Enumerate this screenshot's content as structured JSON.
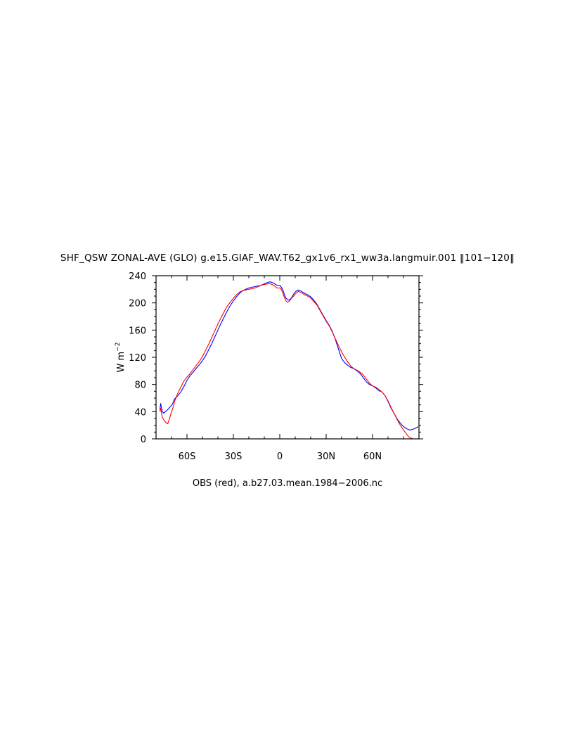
{
  "chart_data": {
    "type": "line",
    "title": "SHF_QSW ZONAL-AVE (GLO) g.e15.GIAF_WAV.T62_gx1v6_rx1_ww3a.langmuir.001 ‖101−120‖",
    "caption": "OBS (red), a.b27.03.mean.1984−2006.nc",
    "xlabel": "",
    "ylabel": "W m",
    "ylabel_superscript": "−2",
    "xlim": [
      -80,
      90
    ],
    "ylim": [
      0,
      240
    ],
    "x_ticks": [
      -60,
      -30,
      0,
      30,
      60
    ],
    "x_tick_labels": [
      "60S",
      "30S",
      "0",
      "30N",
      "60N"
    ],
    "y_ticks": [
      0,
      40,
      80,
      120,
      160,
      200,
      240
    ],
    "y_tick_labels": [
      "0",
      "40",
      "80",
      "120",
      "160",
      "200",
      "240"
    ],
    "grid": false,
    "series": [
      {
        "color": "#0000ff",
        "x": [
          -77.5,
          -77,
          -76.5,
          -76,
          -75,
          -74,
          -73,
          -72,
          -71,
          -70,
          -69,
          -68,
          -66,
          -64,
          -62,
          -60,
          -58,
          -56,
          -54,
          -52,
          -50,
          -48,
          -46,
          -44,
          -42,
          -40,
          -38,
          -36,
          -34,
          -32,
          -30,
          -28,
          -26,
          -24,
          -22,
          -20,
          -18,
          -16,
          -14,
          -12,
          -10,
          -8,
          -6,
          -4,
          -2,
          0,
          1,
          2,
          3,
          4,
          5,
          6,
          7,
          8,
          9,
          10,
          11,
          12,
          13,
          14,
          16,
          18,
          20,
          22,
          24,
          26,
          28,
          30,
          32,
          34,
          36,
          38,
          39,
          40,
          41,
          42,
          43,
          44,
          46,
          48,
          50,
          52,
          54,
          56,
          58,
          60,
          62,
          64,
          66,
          68,
          70,
          72,
          74,
          76,
          78,
          80,
          82,
          84,
          86,
          88,
          89.5
        ],
        "y": [
          43,
          52,
          46,
          40,
          38,
          40,
          42,
          44,
          47,
          49,
          53,
          59,
          63,
          69,
          77,
          86,
          93,
          98,
          104,
          109,
          115,
          122,
          131,
          140,
          150,
          160,
          170,
          179,
          188,
          196,
          203,
          209,
          214,
          218,
          220,
          222,
          223,
          224,
          225,
          226,
          228,
          230,
          231,
          229,
          226,
          226,
          223,
          219,
          212,
          207,
          205,
          204,
          206,
          209,
          213,
          216,
          218,
          219,
          218,
          217,
          214,
          212,
          209,
          204,
          198,
          190,
          182,
          174,
          167,
          158,
          146,
          132,
          125,
          118,
          115,
          112,
          110,
          108,
          105,
          103,
          100,
          96,
          90,
          84,
          80,
          78,
          75,
          71,
          69,
          64,
          55,
          45,
          37,
          29,
          23,
          18,
          15,
          13,
          14,
          16,
          18
        ]
      },
      {
        "color": "#ff0000",
        "x": [
          -77.5,
          -77,
          -76.5,
          -76,
          -75,
          -74,
          -73,
          -72.5,
          -72,
          -71,
          -70,
          -69,
          -68,
          -66,
          -64,
          -62,
          -60,
          -58,
          -56,
          -54,
          -52,
          -50,
          -48,
          -46,
          -44,
          -42,
          -40,
          -38,
          -36,
          -34,
          -32,
          -30,
          -28,
          -26,
          -24,
          -22,
          -20,
          -18,
          -16,
          -14,
          -12,
          -10,
          -8,
          -6,
          -4,
          -2,
          0,
          1,
          2,
          3,
          4,
          5,
          6,
          7,
          8,
          9,
          10,
          11,
          12,
          13,
          14,
          16,
          18,
          20,
          22,
          24,
          26,
          28,
          30,
          32,
          34,
          36,
          38,
          40,
          42,
          44,
          46,
          48,
          50,
          52,
          54,
          56,
          58,
          60,
          62,
          64,
          66,
          68,
          70,
          72,
          74,
          76,
          78,
          80,
          82,
          83,
          84,
          85,
          86,
          87,
          88,
          89.5
        ],
        "y": [
          40,
          45,
          38,
          32,
          28,
          25,
          23,
          22,
          25,
          32,
          40,
          46,
          55,
          67,
          76,
          85,
          91,
          96,
          102,
          108,
          114,
          121,
          130,
          139,
          149,
          159,
          169,
          178,
          187,
          195,
          201,
          207,
          212,
          216,
          218,
          219,
          220,
          221,
          222,
          224,
          226,
          227,
          228,
          228,
          226,
          222,
          222,
          220,
          214,
          208,
          203,
          201,
          202,
          205,
          208,
          210,
          213,
          215,
          217,
          216,
          215,
          212,
          210,
          207,
          202,
          197,
          189,
          181,
          173,
          166,
          157,
          147,
          137,
          128,
          120,
          113,
          107,
          103,
          101,
          98,
          94,
          88,
          82,
          78,
          76,
          73,
          69,
          64,
          56,
          46,
          37,
          28,
          20,
          13,
          7,
          4,
          2,
          1,
          0,
          0,
          0,
          0
        ]
      }
    ]
  }
}
